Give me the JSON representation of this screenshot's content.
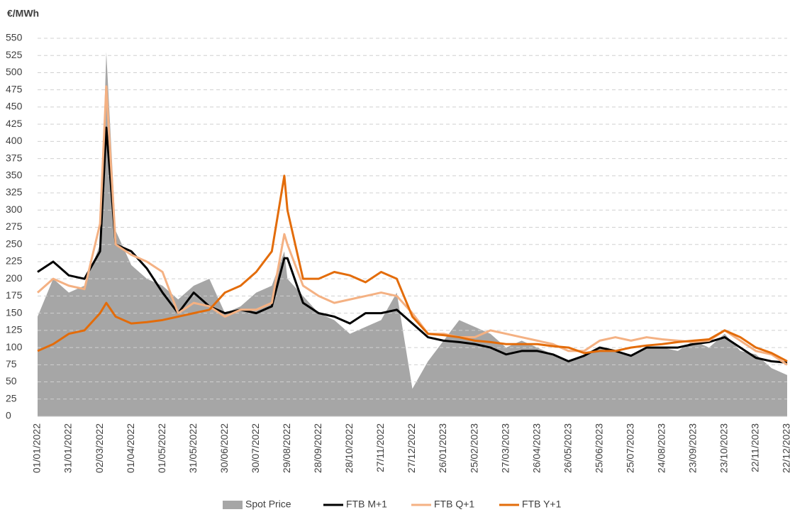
{
  "chart_data": {
    "type": "line",
    "y_label": "€/MWh",
    "x": [
      "01/01/2022",
      "16/01/2022",
      "31/01/2022",
      "15/02/2022",
      "02/03/2022",
      "08/03/2022",
      "17/03/2022",
      "01/04/2022",
      "16/04/2022",
      "01/05/2022",
      "16/05/2022",
      "31/05/2022",
      "15/06/2022",
      "30/06/2022",
      "15/07/2022",
      "30/07/2022",
      "14/08/2022",
      "26/08/2022",
      "29/08/2022",
      "13/09/2022",
      "28/09/2022",
      "13/10/2022",
      "28/10/2022",
      "12/11/2022",
      "27/11/2022",
      "12/12/2022",
      "27/12/2022",
      "11/01/2023",
      "26/01/2023",
      "10/02/2023",
      "25/02/2023",
      "12/03/2023",
      "27/03/2023",
      "11/04/2023",
      "26/04/2023",
      "11/05/2023",
      "26/05/2023",
      "10/06/2023",
      "25/06/2023",
      "10/07/2023",
      "25/07/2023",
      "09/08/2023",
      "24/08/2023",
      "08/09/2023",
      "23/09/2023",
      "08/10/2023",
      "23/10/2023",
      "07/11/2023",
      "22/11/2023",
      "07/12/2023",
      "22/12/2023"
    ],
    "series": [
      {
        "name": "Spot Price",
        "kind": "area",
        "color": "#a6a6a6",
        "values": [
          145,
          200,
          180,
          190,
          250,
          530,
          270,
          220,
          200,
          190,
          170,
          190,
          200,
          150,
          160,
          180,
          190,
          240,
          200,
          175,
          150,
          140,
          120,
          130,
          140,
          180,
          40,
          80,
          110,
          140,
          130,
          120,
          100,
          110,
          100,
          90,
          80,
          90,
          100,
          95,
          90,
          100,
          100,
          95,
          110,
          100,
          120,
          95,
          90,
          70,
          60
        ]
      },
      {
        "name": "FTB M+1",
        "kind": "line",
        "color": "#000000",
        "values": [
          210,
          225,
          205,
          200,
          240,
          420,
          250,
          240,
          215,
          180,
          150,
          180,
          160,
          150,
          155,
          150,
          160,
          230,
          230,
          165,
          150,
          145,
          135,
          150,
          150,
          155,
          135,
          115,
          110,
          108,
          105,
          100,
          90,
          95,
          95,
          90,
          80,
          88,
          100,
          95,
          88,
          100,
          100,
          100,
          105,
          108,
          115,
          100,
          85,
          80,
          78
        ]
      },
      {
        "name": "FTB Q+1",
        "kind": "line",
        "color": "#f4b183",
        "values": [
          180,
          200,
          190,
          185,
          280,
          480,
          250,
          235,
          225,
          210,
          150,
          165,
          160,
          145,
          155,
          155,
          165,
          265,
          250,
          190,
          175,
          165,
          170,
          175,
          180,
          175,
          150,
          120,
          120,
          115,
          115,
          125,
          120,
          115,
          110,
          105,
          95,
          95,
          110,
          115,
          110,
          115,
          112,
          110,
          108,
          110,
          125,
          110,
          95,
          90,
          75
        ]
      },
      {
        "name": "FTB Y+1",
        "kind": "line",
        "color": "#e36c0a",
        "values": [
          95,
          105,
          120,
          125,
          150,
          165,
          145,
          135,
          137,
          140,
          145,
          150,
          155,
          180,
          190,
          210,
          240,
          350,
          300,
          200,
          200,
          210,
          205,
          195,
          210,
          200,
          145,
          120,
          118,
          115,
          110,
          108,
          105,
          105,
          105,
          102,
          100,
          92,
          95,
          95,
          100,
          103,
          105,
          108,
          110,
          112,
          125,
          115,
          100,
          92,
          80
        ]
      }
    ],
    "ylim": [
      0,
      550
    ],
    "yticks": [
      0,
      25,
      50,
      75,
      100,
      125,
      150,
      175,
      200,
      225,
      250,
      275,
      300,
      325,
      350,
      375,
      400,
      425,
      450,
      475,
      500,
      525,
      550
    ],
    "xticks": [
      "01/01/2022",
      "31/01/2022",
      "02/03/2022",
      "01/04/2022",
      "01/05/2022",
      "31/05/2022",
      "30/06/2022",
      "30/07/2022",
      "29/08/2022",
      "28/09/2022",
      "28/10/2022",
      "27/11/2022",
      "27/12/2022",
      "26/01/2023",
      "25/02/2023",
      "27/03/2023",
      "26/04/2023",
      "26/05/2023",
      "25/06/2023",
      "25/07/2023",
      "24/08/2023",
      "23/09/2023",
      "23/10/2023",
      "22/11/2023",
      "22/12/2023"
    ],
    "grid": true,
    "legend": "bottom"
  }
}
